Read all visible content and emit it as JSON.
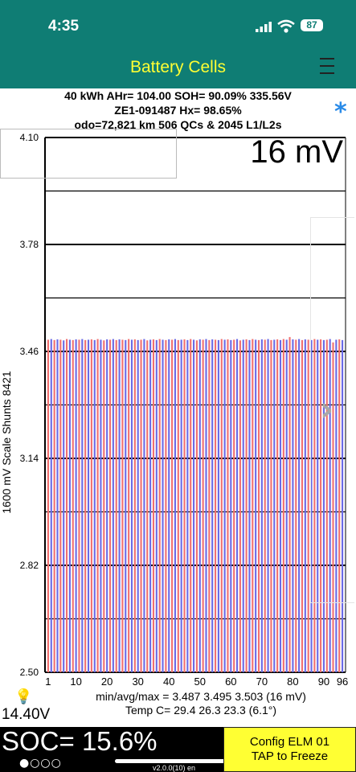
{
  "status_bar": {
    "time": "4:35",
    "battery": "87"
  },
  "nav": {
    "title": "Battery Cells"
  },
  "info": {
    "line1": "40 kWh  AHr= 104.00  SOH= 90.09%   335.56V",
    "line2": "ZE1-091487  Hx= 98.65%",
    "line3": "odo=72,821 km 506 QCs & 2045 L1/L2s"
  },
  "chart_data": {
    "type": "bar",
    "title": "16 mV",
    "ylabel": "1600 mV Scale   Shunts 8421",
    "ylim": [
      2.5,
      4.1
    ],
    "yticks": [
      "4.10",
      "3.78",
      "3.46",
      "3.14",
      "2.82",
      "2.50"
    ],
    "xticks": [
      "1",
      "10",
      "20",
      "30",
      "40",
      "50",
      "60",
      "70",
      "80",
      "90",
      "96"
    ],
    "cell_count": 96,
    "values": [
      3.495,
      3.497,
      3.494,
      3.496,
      3.495,
      3.493,
      3.497,
      3.495,
      3.494,
      3.496,
      3.495,
      3.497,
      3.494,
      3.495,
      3.496,
      3.494,
      3.497,
      3.495,
      3.493,
      3.496,
      3.495,
      3.497,
      3.494,
      3.496,
      3.495,
      3.494,
      3.497,
      3.495,
      3.496,
      3.494,
      3.495,
      3.497,
      3.493,
      3.495,
      3.496,
      3.494,
      3.497,
      3.495,
      3.494,
      3.496,
      3.495,
      3.497,
      3.494,
      3.495,
      3.496,
      3.494,
      3.497,
      3.495,
      3.493,
      3.496,
      3.495,
      3.497,
      3.494,
      3.496,
      3.495,
      3.494,
      3.497,
      3.495,
      3.496,
      3.494,
      3.495,
      3.497,
      3.493,
      3.495,
      3.496,
      3.494,
      3.497,
      3.495,
      3.494,
      3.496,
      3.495,
      3.497,
      3.494,
      3.495,
      3.496,
      3.494,
      3.497,
      3.495,
      3.503,
      3.496,
      3.495,
      3.497,
      3.494,
      3.496,
      3.495,
      3.494,
      3.497,
      3.495,
      3.496,
      3.494,
      3.495,
      3.497,
      3.487,
      3.495,
      3.496,
      3.494
    ],
    "colors": {
      "odd": "#f07070",
      "even": "#6a6ae6"
    }
  },
  "stats": {
    "minmax": "min/avg/max = 3.487 3.495 3.503  (16 mV)",
    "temp": "Temp C= 29.4  26.3  23.3  (6.1°)"
  },
  "voltage": "14.40V",
  "soc": "SOC= 15.6%",
  "dots": "●○○○",
  "version": "v2.0.0(10) en",
  "config": {
    "line1": "Config ELM  01",
    "line2": "TAP to Freeze"
  },
  "colors": {
    "header": "#0f7d74",
    "title": "#ffff33",
    "star": "#2a8be8"
  }
}
